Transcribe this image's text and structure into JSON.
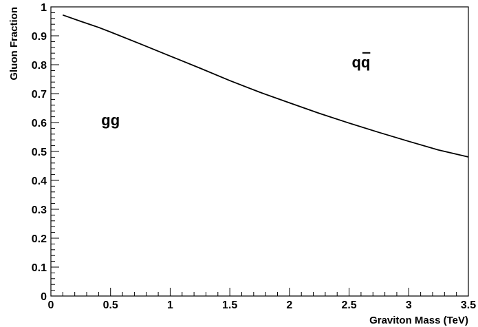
{
  "chart_data": {
    "type": "line",
    "title": "",
    "xlabel": "Graviton Mass (TeV)",
    "ylabel": "Gluon Fraction",
    "xlim": [
      0,
      3.5
    ],
    "ylim": [
      0,
      1
    ],
    "xticks": [
      "0",
      "0.5",
      "1",
      "1.5",
      "2",
      "2.5",
      "3",
      "3.5"
    ],
    "yticks": [
      "0",
      "0.1",
      "0.2",
      "0.3",
      "0.4",
      "0.5",
      "0.6",
      "0.7",
      "0.8",
      "0.9",
      "1"
    ],
    "grid": false,
    "series": [
      {
        "x": [
          0.1,
          0.25,
          0.4,
          0.5,
          0.75,
          1.0,
          1.25,
          1.5,
          1.75,
          2.0,
          2.25,
          2.5,
          2.75,
          3.0,
          3.25,
          3.5
        ],
        "y": [
          0.972,
          0.95,
          0.929,
          0.913,
          0.872,
          0.83,
          0.788,
          0.745,
          0.705,
          0.668,
          0.632,
          0.598,
          0.566,
          0.535,
          0.505,
          0.481
        ]
      }
    ],
    "annotations": [
      {
        "text": "gg",
        "x": 0.5,
        "y": 0.61
      },
      {
        "text": "qq",
        "overline_second": true,
        "x": 2.6,
        "y": 0.81
      }
    ]
  }
}
